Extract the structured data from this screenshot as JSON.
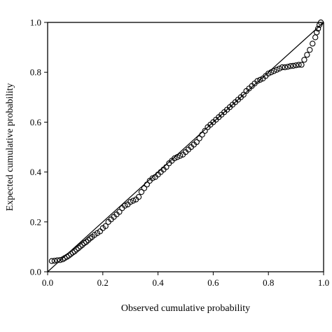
{
  "chart_data": {
    "type": "scatter",
    "title": "",
    "xlabel": "Observed cumulative probability",
    "ylabel": "Expected cumulative probability",
    "xlim": [
      0,
      1
    ],
    "ylim": [
      0,
      1
    ],
    "x_ticks": [
      0.0,
      0.2,
      0.4,
      0.6,
      0.8,
      1.0
    ],
    "x_tick_labels": [
      "0.0",
      "0.2",
      "0.4",
      "0.6",
      "0.8",
      "1.0"
    ],
    "y_ticks": [
      0.0,
      0.2,
      0.4,
      0.6,
      0.8,
      1.0
    ],
    "y_tick_labels": [
      "0.0",
      "0.2",
      "0.4",
      "0.6",
      "0.8",
      "1.0"
    ],
    "grid": false,
    "legend": "none",
    "reference_line": {
      "from": [
        0,
        0
      ],
      "to": [
        1,
        1
      ]
    },
    "marker": "open-circle",
    "series": [
      {
        "points": [
          [
            0.015,
            0.043
          ],
          [
            0.025,
            0.044
          ],
          [
            0.035,
            0.046
          ],
          [
            0.045,
            0.047
          ],
          [
            0.055,
            0.05
          ],
          [
            0.062,
            0.055
          ],
          [
            0.07,
            0.06
          ],
          [
            0.077,
            0.065
          ],
          [
            0.084,
            0.071
          ],
          [
            0.091,
            0.077
          ],
          [
            0.098,
            0.082
          ],
          [
            0.105,
            0.089
          ],
          [
            0.112,
            0.095
          ],
          [
            0.119,
            0.102
          ],
          [
            0.126,
            0.108
          ],
          [
            0.133,
            0.115
          ],
          [
            0.14,
            0.12
          ],
          [
            0.147,
            0.127
          ],
          [
            0.154,
            0.134
          ],
          [
            0.161,
            0.14
          ],
          [
            0.17,
            0.148
          ],
          [
            0.18,
            0.155
          ],
          [
            0.19,
            0.162
          ],
          [
            0.2,
            0.175
          ],
          [
            0.21,
            0.183
          ],
          [
            0.22,
            0.2
          ],
          [
            0.23,
            0.21
          ],
          [
            0.24,
            0.22
          ],
          [
            0.25,
            0.23
          ],
          [
            0.26,
            0.24
          ],
          [
            0.27,
            0.255
          ],
          [
            0.28,
            0.265
          ],
          [
            0.29,
            0.27
          ],
          [
            0.3,
            0.28
          ],
          [
            0.31,
            0.285
          ],
          [
            0.32,
            0.29
          ],
          [
            0.33,
            0.3
          ],
          [
            0.34,
            0.32
          ],
          [
            0.35,
            0.335
          ],
          [
            0.36,
            0.35
          ],
          [
            0.37,
            0.365
          ],
          [
            0.38,
            0.375
          ],
          [
            0.39,
            0.38
          ],
          [
            0.4,
            0.39
          ],
          [
            0.41,
            0.4
          ],
          [
            0.42,
            0.41
          ],
          [
            0.43,
            0.42
          ],
          [
            0.44,
            0.435
          ],
          [
            0.45,
            0.445
          ],
          [
            0.46,
            0.455
          ],
          [
            0.47,
            0.46
          ],
          [
            0.48,
            0.465
          ],
          [
            0.49,
            0.47
          ],
          [
            0.5,
            0.48
          ],
          [
            0.51,
            0.49
          ],
          [
            0.52,
            0.5
          ],
          [
            0.53,
            0.51
          ],
          [
            0.54,
            0.52
          ],
          [
            0.55,
            0.535
          ],
          [
            0.56,
            0.55
          ],
          [
            0.57,
            0.565
          ],
          [
            0.58,
            0.58
          ],
          [
            0.59,
            0.59
          ],
          [
            0.6,
            0.6
          ],
          [
            0.61,
            0.61
          ],
          [
            0.62,
            0.62
          ],
          [
            0.63,
            0.63
          ],
          [
            0.64,
            0.64
          ],
          [
            0.65,
            0.65
          ],
          [
            0.66,
            0.66
          ],
          [
            0.67,
            0.67
          ],
          [
            0.68,
            0.68
          ],
          [
            0.69,
            0.69
          ],
          [
            0.7,
            0.7
          ],
          [
            0.71,
            0.71
          ],
          [
            0.72,
            0.725
          ],
          [
            0.73,
            0.735
          ],
          [
            0.74,
            0.745
          ],
          [
            0.75,
            0.755
          ],
          [
            0.76,
            0.765
          ],
          [
            0.77,
            0.77
          ],
          [
            0.78,
            0.775
          ],
          [
            0.79,
            0.785
          ],
          [
            0.8,
            0.795
          ],
          [
            0.81,
            0.8
          ],
          [
            0.82,
            0.805
          ],
          [
            0.83,
            0.81
          ],
          [
            0.84,
            0.815
          ],
          [
            0.85,
            0.82
          ],
          [
            0.86,
            0.82
          ],
          [
            0.87,
            0.822
          ],
          [
            0.88,
            0.825
          ],
          [
            0.89,
            0.826
          ],
          [
            0.9,
            0.828
          ],
          [
            0.91,
            0.83
          ],
          [
            0.92,
            0.83
          ],
          [
            0.93,
            0.85
          ],
          [
            0.94,
            0.87
          ],
          [
            0.95,
            0.89
          ],
          [
            0.96,
            0.915
          ],
          [
            0.97,
            0.94
          ],
          [
            0.975,
            0.96
          ],
          [
            0.98,
            0.975
          ],
          [
            0.985,
            0.99
          ],
          [
            0.99,
            1.0
          ]
        ]
      }
    ]
  }
}
